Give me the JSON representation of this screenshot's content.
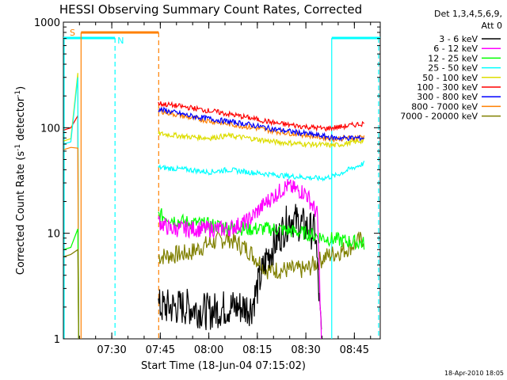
{
  "chart_data": {
    "type": "line",
    "title": "HESSI Observing Summary Count Rates, Corrected",
    "xlabel": "Start Time (18-Jun-04 07:15:02)",
    "ylabel": "Corrected Count Rate (s⁻¹ detector⁻¹)",
    "ylabel_main": "Corrected Count Rate (s",
    "ylabel_sup1": "-1",
    "ylabel_mid": " detector",
    "ylabel_sup2": "-1",
    "ylabel_end": ")",
    "y_scale": "log",
    "ylim": [
      1,
      1000
    ],
    "xlim": [
      "07:15:02",
      "08:53:00"
    ],
    "x_ticks": [
      "07:30",
      "07:45",
      "08:00",
      "08:15",
      "08:30",
      "08:45"
    ],
    "y_ticks": [
      "1",
      "10",
      "100",
      "1000"
    ],
    "grid": false,
    "legend_position": "right",
    "legend_title_line1": "Det 1,3,4,5,6,9,",
    "legend_title_line2": "Att 0",
    "timestamp": "18-Apr-2010 18:05",
    "state_labels": [
      "S",
      "N"
    ],
    "series": [
      {
        "name": "3 - 6 keV",
        "color": "#000000"
      },
      {
        "name": "6 - 12 keV",
        "color": "#ff00ff"
      },
      {
        "name": "12 - 25 keV",
        "color": "#00ff00"
      },
      {
        "name": "25 - 50 keV",
        "color": "#00ffff"
      },
      {
        "name": "50 - 100 keV",
        "color": "#dddd00"
      },
      {
        "name": "100 - 300 keV",
        "color": "#ff0000"
      },
      {
        "name": "300 - 800 keV",
        "color": "#0000ff"
      },
      {
        "name": "800 - 7000 keV",
        "color": "#ff8000"
      },
      {
        "name": "7000 - 20000 keV",
        "color": "#808000"
      }
    ],
    "profiles": {
      "3 - 6 keV": [
        [
          7.74,
          2
        ],
        [
          7.9,
          2
        ],
        [
          8.0,
          1.8
        ],
        [
          8.1,
          2
        ],
        [
          8.22,
          2
        ],
        [
          8.3,
          6
        ],
        [
          8.42,
          14
        ],
        [
          8.55,
          10
        ],
        [
          8.58,
          1
        ]
      ],
      "6 - 12 keV": [
        [
          7.74,
          13
        ],
        [
          7.8,
          11
        ],
        [
          7.95,
          11
        ],
        [
          8.1,
          11
        ],
        [
          8.2,
          13
        ],
        [
          8.3,
          20
        ],
        [
          8.4,
          28
        ],
        [
          8.5,
          24
        ],
        [
          8.56,
          15
        ],
        [
          8.58,
          1
        ]
      ],
      "12 - 25 keV": [
        [
          7.74,
          15
        ],
        [
          7.85,
          13
        ],
        [
          8.0,
          12
        ],
        [
          8.2,
          11
        ],
        [
          8.35,
          11
        ],
        [
          8.5,
          10
        ],
        [
          8.6,
          9
        ],
        [
          8.8,
          8
        ]
      ],
      "25 - 50 keV": [
        [
          7.74,
          42
        ],
        [
          7.9,
          40
        ],
        [
          8.0,
          38
        ],
        [
          8.1,
          40
        ],
        [
          8.2,
          38
        ],
        [
          8.4,
          35
        ],
        [
          8.58,
          33
        ],
        [
          8.65,
          35
        ],
        [
          8.72,
          40
        ],
        [
          8.8,
          46
        ]
      ],
      "50 - 100 keV": [
        [
          7.74,
          88
        ],
        [
          7.9,
          82
        ],
        [
          8.0,
          80
        ],
        [
          8.1,
          84
        ],
        [
          8.2,
          80
        ],
        [
          8.35,
          73
        ],
        [
          8.5,
          70
        ],
        [
          8.65,
          68
        ],
        [
          8.8,
          76
        ]
      ],
      "100 - 300 keV": [
        [
          7.74,
          170
        ],
        [
          7.9,
          155
        ],
        [
          8.05,
          140
        ],
        [
          8.2,
          125
        ],
        [
          8.35,
          110
        ],
        [
          8.5,
          102
        ],
        [
          8.6,
          98
        ],
        [
          8.7,
          103
        ],
        [
          8.8,
          110
        ]
      ],
      "300 - 800 keV": [
        [
          7.74,
          150
        ],
        [
          7.9,
          130
        ],
        [
          8.05,
          118
        ],
        [
          8.2,
          108
        ],
        [
          8.35,
          96
        ],
        [
          8.5,
          88
        ],
        [
          8.65,
          80
        ],
        [
          8.8,
          80
        ]
      ],
      "800 - 7000 keV": [
        [
          7.74,
          145
        ],
        [
          7.9,
          125
        ],
        [
          8.05,
          112
        ],
        [
          8.2,
          102
        ],
        [
          8.35,
          92
        ],
        [
          8.5,
          85
        ],
        [
          8.65,
          78
        ],
        [
          8.8,
          82
        ]
      ],
      "7000 - 20000 keV": [
        [
          7.74,
          6
        ],
        [
          7.9,
          6.5
        ],
        [
          8.0,
          8
        ],
        [
          8.1,
          9
        ],
        [
          8.2,
          7
        ],
        [
          8.3,
          4.5
        ],
        [
          8.5,
          4.5
        ],
        [
          8.6,
          6
        ],
        [
          8.7,
          7
        ],
        [
          8.8,
          9
        ]
      ]
    }
  }
}
